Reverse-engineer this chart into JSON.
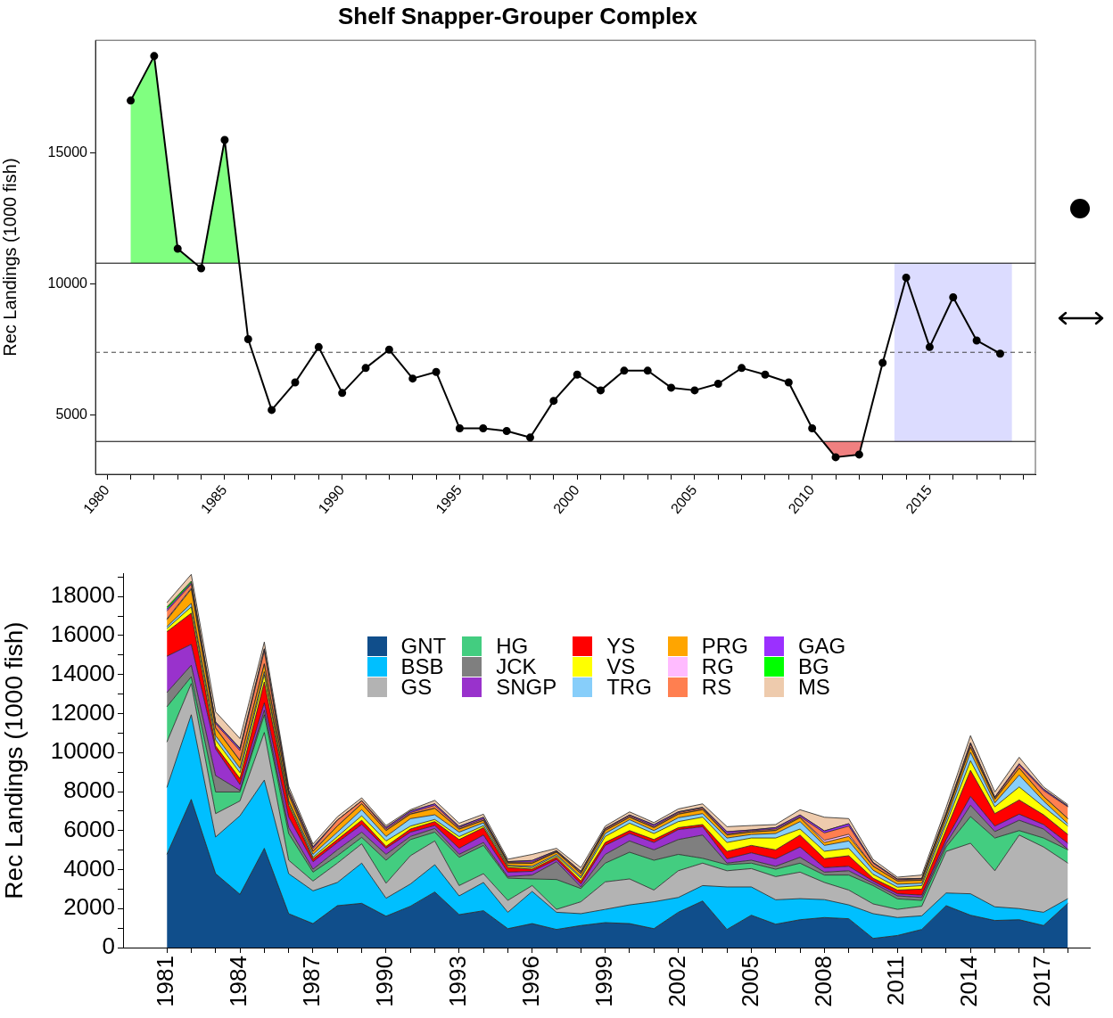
{
  "chart_data": [
    {
      "type": "line",
      "title": "Shelf Snapper-Grouper Complex",
      "ylabel": "Rec Landings (1000 fish)",
      "x": [
        1981,
        1982,
        1983,
        1984,
        1985,
        1986,
        1987,
        1988,
        1989,
        1990,
        1991,
        1992,
        1993,
        1994,
        1995,
        1996,
        1997,
        1998,
        1999,
        2000,
        2001,
        2002,
        2003,
        2004,
        2005,
        2006,
        2007,
        2008,
        2009,
        2010,
        2011,
        2012,
        2013,
        2014,
        2015,
        2016,
        2017,
        2018
      ],
      "series": [
        {
          "color": "#000000",
          "values": [
            17000,
            18700,
            11350,
            10600,
            15500,
            7900,
            5200,
            6250,
            7600,
            5850,
            6800,
            7500,
            6400,
            6650,
            4500,
            4500,
            4400,
            4150,
            5550,
            6550,
            5950,
            6700,
            6700,
            6050,
            5950,
            6200,
            6800,
            6550,
            6250,
            4500,
            3400,
            3500,
            7000,
            10250,
            7600,
            9500,
            7850,
            7350
          ]
        }
      ],
      "marker": "circle",
      "line_style": "solid",
      "ref_lines": [
        {
          "axis": "y",
          "value": 10800,
          "color": "#000000",
          "line_style": "solid"
        },
        {
          "axis": "y",
          "value": 7400,
          "color": "#404040",
          "line_style": "dashed"
        },
        {
          "axis": "y",
          "value": 4000,
          "color": "#000000",
          "line_style": "solid"
        }
      ],
      "bands": [
        {
          "axis": "x",
          "from": 2013.5,
          "to": 2018.5,
          "color": "#dcdcff"
        }
      ],
      "xlim": [
        1979.5,
        2019.5
      ],
      "ylim": [
        2750,
        19300
      ],
      "xticks": [
        1980,
        {
          "value": 1981,
          "label": null
        },
        {
          "value": 1982,
          "label": null
        },
        {
          "value": 1983,
          "label": null
        },
        {
          "value": 1984,
          "label": null
        },
        1985,
        {
          "value": 1986,
          "label": null
        },
        {
          "value": 1987,
          "label": null
        },
        {
          "value": 1988,
          "label": null
        },
        {
          "value": 1989,
          "label": null
        },
        1990,
        {
          "value": 1991,
          "label": null
        },
        {
          "value": 1992,
          "label": null
        },
        {
          "value": 1993,
          "label": null
        },
        {
          "value": 1994,
          "label": null
        },
        1995,
        {
          "value": 1996,
          "label": null
        },
        {
          "value": 1997,
          "label": null
        },
        {
          "value": 1998,
          "label": null
        },
        {
          "value": 1999,
          "label": null
        },
        2000,
        {
          "value": 2001,
          "label": null
        },
        {
          "value": 2002,
          "label": null
        },
        {
          "value": 2003,
          "label": null
        },
        {
          "value": 2004,
          "label": null
        },
        2005,
        {
          "value": 2006,
          "label": null
        },
        {
          "value": 2007,
          "label": null
        },
        {
          "value": 2008,
          "label": null
        },
        {
          "value": 2009,
          "label": null
        },
        2010,
        {
          "value": 2011,
          "label": null
        },
        {
          "value": 2012,
          "label": null
        },
        {
          "value": 2013,
          "label": null
        },
        {
          "value": 2014,
          "label": null
        },
        2015,
        {
          "value": 2016,
          "label": null
        },
        {
          "value": 2017,
          "label": null
        },
        {
          "value": 2018,
          "label": null
        },
        {
          "value": 2019,
          "label": null
        }
      ],
      "yticks": [
        5000,
        10000,
        15000
      ]
    },
    {
      "type": "area",
      "stacked": true,
      "ylabel": "Rec Landings (1000 fish)",
      "legend": "top",
      "x": [
        1981,
        1982,
        1983,
        1984,
        1985,
        1986,
        1987,
        1988,
        1989,
        1990,
        1991,
        1992,
        1993,
        1994,
        1995,
        1996,
        1997,
        1998,
        1999,
        2000,
        2001,
        2002,
        2003,
        2004,
        2005,
        2006,
        2007,
        2008,
        2009,
        2010,
        2011,
        2012,
        2013,
        2014,
        2015,
        2016,
        2017,
        2018
      ],
      "series": [
        {
          "name": "GNT",
          "color": "#104e8b",
          "values": [
            4780,
            7600,
            3790,
            2730,
            5090,
            1740,
            1230,
            2150,
            2270,
            1610,
            2120,
            2850,
            1690,
            1890,
            970,
            1230,
            930,
            1130,
            1280,
            1230,
            970,
            1810,
            2390,
            930,
            1660,
            1200,
            1430,
            1540,
            1480,
            470,
            620,
            930,
            2150,
            1660,
            1390,
            1430,
            1130,
            2270
          ]
        },
        {
          "name": "BSB",
          "color": "#00bfff",
          "values": [
            3430,
            4340,
            1880,
            4030,
            3500,
            2050,
            1680,
            1190,
            2060,
            920,
            1140,
            1400,
            960,
            1450,
            840,
            1650,
            880,
            610,
            680,
            960,
            1380,
            760,
            790,
            2180,
            1450,
            1250,
            1080,
            920,
            710,
            1270,
            920,
            700,
            650,
            1100,
            700,
            570,
            680,
            240
          ]
        },
        {
          "name": "GS",
          "color": "#b3b3b3",
          "values": [
            2330,
            1600,
            1200,
            760,
            2440,
            690,
            500,
            990,
            990,
            770,
            1450,
            1220,
            530,
            450,
            610,
            300,
            150,
            610,
            1410,
            1330,
            600,
            1370,
            1150,
            830,
            940,
            1190,
            1360,
            880,
            760,
            500,
            420,
            490,
            2130,
            2590,
            1850,
            3770,
            3350,
            1820
          ]
        },
        {
          "name": "HG",
          "color": "#43cd80",
          "values": [
            1810,
            350,
            1110,
            460,
            910,
            1370,
            460,
            380,
            330,
            1180,
            830,
            450,
            1450,
            1450,
            1140,
            340,
            1530,
            680,
            960,
            1370,
            1530,
            840,
            250,
            310,
            280,
            380,
            460,
            380,
            770,
            940,
            540,
            300,
            230,
            1370,
            1680,
            230,
            460,
            680
          ]
        },
        {
          "name": "JCK",
          "color": "#7f7f7f",
          "values": [
            730,
            590,
            840,
            80,
            230,
            300,
            150,
            300,
            270,
            300,
            160,
            190,
            150,
            150,
            80,
            200,
            910,
            80,
            450,
            580,
            530,
            760,
            1190,
            80,
            150,
            150,
            300,
            150,
            220,
            120,
            150,
            150,
            180,
            580,
            330,
            530,
            460,
            30
          ]
        },
        {
          "name": "SNGP",
          "color": "#9932cc",
          "values": [
            1860,
            1070,
            1370,
            300,
            380,
            540,
            380,
            380,
            390,
            310,
            220,
            150,
            310,
            380,
            230,
            190,
            120,
            150,
            460,
            380,
            380,
            510,
            430,
            220,
            380,
            380,
            530,
            230,
            230,
            110,
            110,
            120,
            200,
            450,
            280,
            310,
            230,
            310
          ]
        },
        {
          "name": "YS",
          "color": "#ff0000",
          "values": [
            1260,
            1600,
            150,
            310,
            1070,
            610,
            150,
            150,
            220,
            100,
            160,
            200,
            450,
            380,
            230,
            110,
            110,
            150,
            150,
            150,
            150,
            100,
            110,
            380,
            380,
            460,
            610,
            460,
            540,
            150,
            190,
            310,
            500,
            1340,
            640,
            730,
            500,
            450
          ]
        },
        {
          "name": "VS",
          "color": "#ffff00",
          "values": [
            160,
            320,
            310,
            300,
            380,
            150,
            80,
            150,
            230,
            280,
            150,
            110,
            150,
            100,
            80,
            80,
            80,
            150,
            310,
            380,
            310,
            310,
            380,
            460,
            380,
            610,
            310,
            380,
            380,
            200,
            150,
            180,
            300,
            490,
            350,
            670,
            410,
            430
          ]
        },
        {
          "name": "TRG",
          "color": "#87cefa",
          "values": [
            100,
            180,
            220,
            230,
            150,
            80,
            150,
            230,
            310,
            230,
            380,
            240,
            230,
            150,
            40,
            70,
            70,
            80,
            150,
            180,
            150,
            200,
            180,
            230,
            180,
            230,
            380,
            300,
            380,
            210,
            150,
            120,
            200,
            430,
            200,
            610,
            300,
            120
          ]
        },
        {
          "name": "PRG",
          "color": "#ffa500",
          "values": [
            350,
            730,
            380,
            380,
            380,
            300,
            150,
            310,
            300,
            300,
            230,
            330,
            150,
            120,
            110,
            150,
            110,
            150,
            150,
            120,
            150,
            180,
            200,
            150,
            120,
            150,
            200,
            150,
            230,
            200,
            160,
            150,
            200,
            260,
            180,
            350,
            230,
            260
          ]
        },
        {
          "name": "RG",
          "color": "#ffbbff",
          "values": [
            50,
            50,
            20,
            20,
            30,
            20,
            10,
            10,
            10,
            10,
            10,
            10,
            10,
            10,
            5,
            5,
            5,
            5,
            10,
            10,
            10,
            10,
            10,
            10,
            10,
            10,
            10,
            110,
            110,
            5,
            5,
            5,
            5,
            5,
            5,
            5,
            5,
            5
          ]
        },
        {
          "name": "RS",
          "color": "#ff7f50",
          "values": [
            400,
            210,
            210,
            500,
            650,
            130,
            140,
            290,
            140,
            80,
            70,
            140,
            70,
            70,
            40,
            60,
            40,
            70,
            70,
            70,
            60,
            70,
            70,
            60,
            60,
            70,
            50,
            380,
            420,
            150,
            70,
            60,
            100,
            150,
            70,
            150,
            300,
            600
          ]
        },
        {
          "name": "GAG",
          "color": "#9b30ff",
          "values": [
            100,
            70,
            80,
            100,
            100,
            80,
            80,
            5,
            10,
            70,
            80,
            80,
            60,
            80,
            30,
            80,
            30,
            40,
            30,
            40,
            80,
            40,
            40,
            100,
            40,
            70,
            80,
            100,
            120,
            40,
            30,
            30,
            50,
            70,
            40,
            70,
            70,
            40
          ]
        },
        {
          "name": "BG",
          "color": "#00ff00",
          "values": [
            100,
            80,
            10,
            30,
            20,
            10,
            10,
            5,
            5,
            5,
            5,
            5,
            5,
            5,
            5,
            5,
            5,
            5,
            5,
            5,
            5,
            5,
            5,
            5,
            5,
            5,
            5,
            5,
            5,
            5,
            5,
            5,
            5,
            5,
            5,
            5,
            5,
            5
          ]
        },
        {
          "name": "MS",
          "color": "#eecbad",
          "values": [
            230,
            350,
            520,
            490,
            340,
            200,
            140,
            170,
            145,
            95,
            65,
            175,
            165,
            155,
            120,
            310,
            120,
            190,
            115,
            155,
            105,
            145,
            175,
            255,
            225,
            155,
            265,
            700,
            260,
            150,
            90,
            170,
            290,
            370,
            260,
            330,
            110,
            70
          ]
        }
      ],
      "xlim": [
        1979.2,
        2018.9
      ],
      "ylim": [
        0,
        19200
      ],
      "xticks": [
        1981,
        {
          "value": 1982,
          "label": null
        },
        {
          "value": 1983,
          "label": null
        },
        1984,
        {
          "value": 1985,
          "label": null
        },
        {
          "value": 1986,
          "label": null
        },
        1987,
        {
          "value": 1988,
          "label": null
        },
        {
          "value": 1989,
          "label": null
        },
        1990,
        {
          "value": 1991,
          "label": null
        },
        {
          "value": 1992,
          "label": null
        },
        1993,
        {
          "value": 1994,
          "label": null
        },
        {
          "value": 1995,
          "label": null
        },
        1996,
        {
          "value": 1997,
          "label": null
        },
        {
          "value": 1998,
          "label": null
        },
        1999,
        {
          "value": 2000,
          "label": null
        },
        {
          "value": 2001,
          "label": null
        },
        2002,
        {
          "value": 2003,
          "label": null
        },
        {
          "value": 2004,
          "label": null
        },
        2005,
        {
          "value": 2006,
          "label": null
        },
        {
          "value": 2007,
          "label": null
        },
        2008,
        {
          "value": 2009,
          "label": null
        },
        {
          "value": 2010,
          "label": null
        },
        2011,
        {
          "value": 2012,
          "label": null
        },
        {
          "value": 2013,
          "label": null
        },
        2014,
        {
          "value": 2015,
          "label": null
        },
        {
          "value": 2016,
          "label": null
        },
        2017,
        {
          "value": 2018,
          "label": null
        }
      ],
      "yticks": [
        0,
        {
          "value": 1000,
          "label": null
        },
        2000,
        {
          "value": 3000,
          "label": null
        },
        4000,
        {
          "value": 5000,
          "label": null
        },
        6000,
        {
          "value": 7000,
          "label": null
        },
        8000,
        {
          "value": 9000,
          "label": null
        },
        10000,
        {
          "value": 11000,
          "label": null
        },
        12000,
        {
          "value": 13000,
          "label": null
        },
        14000,
        {
          "value": 15000,
          "label": null
        },
        16000,
        {
          "value": 17000,
          "label": null
        },
        18000,
        {
          "value": 19000,
          "label": null
        }
      ]
    }
  ]
}
